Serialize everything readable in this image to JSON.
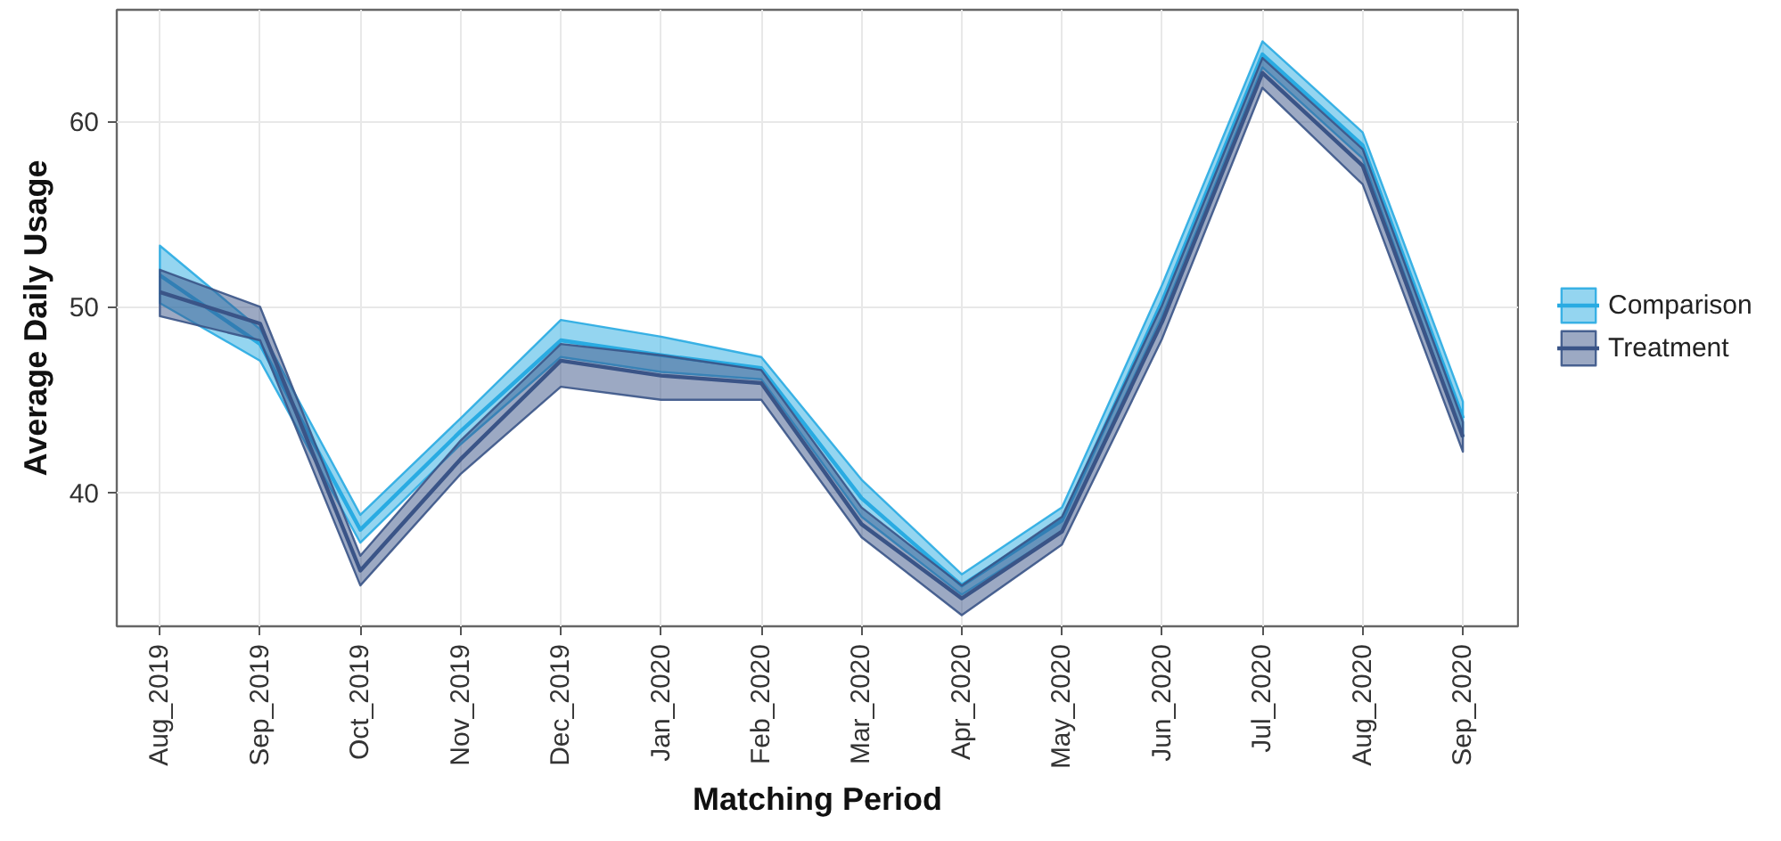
{
  "chart_data": {
    "type": "line",
    "xlabel": "Matching Period",
    "ylabel": "Average Daily Usage",
    "categories": [
      "Aug_2019",
      "Sep_2019",
      "Oct_2019",
      "Nov_2019",
      "Dec_2019",
      "Jan_2020",
      "Feb_2020",
      "Mar_2020",
      "Apr_2020",
      "May_2020",
      "Jun_2020",
      "Jul_2020",
      "Aug_2020",
      "Sep_2020"
    ],
    "series": [
      {
        "name": "Comparison",
        "color": "#29abe2",
        "values": [
          51.7,
          48.0,
          38.0,
          43.3,
          48.2,
          47.4,
          46.7,
          39.7,
          35.0,
          38.5,
          50.3,
          63.6,
          58.7,
          44.0
        ],
        "lower": [
          50.2,
          47.1,
          37.3,
          42.6,
          47.3,
          46.5,
          46.1,
          38.7,
          34.5,
          37.9,
          49.5,
          62.9,
          58.0,
          43.0
        ],
        "upper": [
          53.3,
          48.8,
          38.8,
          44.0,
          49.3,
          48.4,
          47.3,
          40.7,
          35.6,
          39.2,
          51.2,
          64.3,
          59.4,
          44.9
        ]
      },
      {
        "name": "Treatment",
        "color": "#3a5487",
        "values": [
          50.8,
          49.1,
          35.8,
          41.8,
          47.1,
          46.3,
          45.9,
          38.3,
          34.3,
          37.9,
          49.2,
          62.6,
          57.6,
          43.0
        ],
        "lower": [
          49.5,
          48.2,
          35.0,
          41.0,
          45.7,
          45.0,
          45.0,
          37.6,
          33.4,
          37.2,
          48.3,
          61.8,
          56.6,
          42.2
        ],
        "upper": [
          52.0,
          50.0,
          36.6,
          42.8,
          48.0,
          47.4,
          46.6,
          39.2,
          35.0,
          38.7,
          50.1,
          63.4,
          58.5,
          43.8
        ]
      }
    ],
    "ylim": [
      32.8,
      66.0
    ],
    "yticks": [
      40,
      50,
      60
    ],
    "grid": true,
    "legend": "right"
  }
}
